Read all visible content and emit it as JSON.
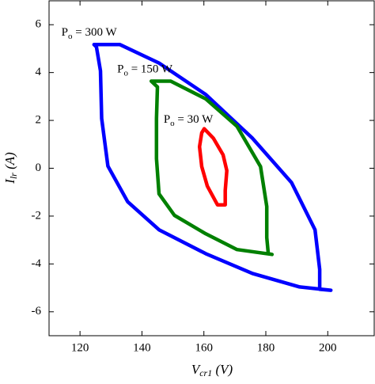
{
  "chart_data": {
    "type": "line",
    "x_label": {
      "main": "V",
      "sub": "cr1",
      "rest": " (V)"
    },
    "y_label": {
      "main": "I",
      "sub": "lr",
      "rest": " (A)"
    },
    "xlim": [
      110,
      215
    ],
    "ylim": [
      -7,
      7
    ],
    "xticks": [
      120,
      140,
      160,
      180,
      200
    ],
    "yticks": [
      -6,
      -4,
      -2,
      0,
      2,
      4,
      6
    ],
    "grid": false,
    "series": [
      {
        "color": "#0000ff",
        "x": [
          124.5,
          132.9,
          145.5,
          160.6,
          175.7,
          188.3,
          195.9,
          197.4,
          197.4,
          201,
          190.9,
          175.7,
          160.6,
          145.5,
          135.4,
          129,
          127,
          126.6,
          125.3,
          124.5
        ],
        "values": [
          5.17,
          5.17,
          4.4,
          3.08,
          1.25,
          -0.6,
          -2.57,
          -4.23,
          -5.06,
          -5.1,
          -4.96,
          -4.4,
          -3.57,
          -2.57,
          -1.4,
          0.09,
          2.08,
          4.07,
          5.07,
          5.17
        ]
      },
      {
        "color": "#008000",
        "x": [
          143,
          149.3,
          160.6,
          170.7,
          178.3,
          180.3,
          180.3,
          180.8,
          182,
          170.7,
          160.6,
          150.5,
          145.5,
          144.7,
          144.7,
          145,
          143
        ],
        "values": [
          3.64,
          3.64,
          2.9,
          1.75,
          0.07,
          -1.6,
          -2.9,
          -3.57,
          -3.6,
          -3.4,
          -2.74,
          -1.97,
          -1.07,
          0.4,
          2.08,
          3.4,
          3.64
        ]
      },
      {
        "color": "#ff0000",
        "x": [
          160.1,
          163.1,
          166.2,
          167.4,
          166.9,
          166.9,
          164.4,
          161.1,
          159.3,
          158.6,
          159.3,
          160.1
        ],
        "values": [
          1.65,
          1.25,
          0.56,
          -0.1,
          -0.93,
          -1.53,
          -1.53,
          -0.74,
          0.07,
          0.9,
          1.48,
          1.65
        ]
      }
    ],
    "annotations": [
      {
        "main": "P",
        "sub": "o",
        "rest": " = 300 W",
        "x": 114,
        "y": 5.65
      },
      {
        "main": "P",
        "sub": "o",
        "rest": " = 150 W",
        "x": 132,
        "y": 4.1
      },
      {
        "main": "P",
        "sub": "o",
        "rest": " = 30 W",
        "x": 147,
        "y": 2.0
      }
    ]
  }
}
